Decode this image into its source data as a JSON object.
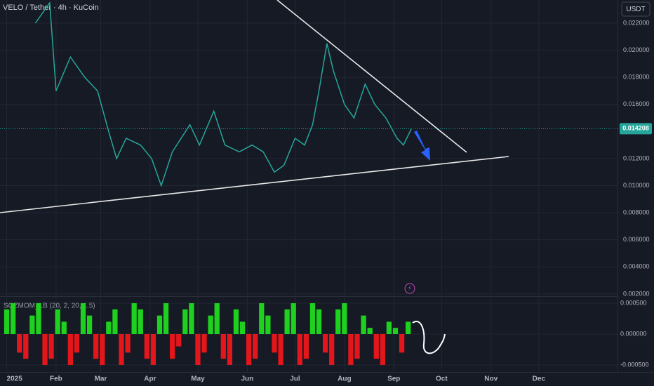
{
  "chart_data": [
    {
      "type": "line",
      "title": "VELO / Tether · 4h · KuCoin",
      "currency": "USDT",
      "color": "#26a69a",
      "last_value": 0.014208,
      "x": [
        18,
        27,
        31,
        40,
        49,
        57,
        64,
        69,
        75,
        84,
        91,
        97,
        104,
        115,
        121,
        130,
        137,
        146,
        154,
        161,
        168,
        174,
        181,
        187,
        192,
        196,
        201,
        205,
        212,
        218,
        225,
        231,
        238,
        245,
        249,
        254
      ],
      "values": [
        0.022,
        0.0235,
        0.017,
        0.0195,
        0.018,
        0.017,
        0.014,
        0.012,
        0.0135,
        0.013,
        0.012,
        0.01,
        0.0125,
        0.0145,
        0.013,
        0.0155,
        0.013,
        0.0125,
        0.013,
        0.0125,
        0.011,
        0.0115,
        0.0135,
        0.013,
        0.0145,
        0.017,
        0.0205,
        0.0185,
        0.016,
        0.015,
        0.0175,
        0.016,
        0.015,
        0.0135,
        0.013,
        0.0142
      ],
      "xlim": [
        -4.2,
        383.4
      ],
      "xticks": [
        {
          "value": 0,
          "label": "2025"
        },
        {
          "value": 31,
          "label": "Feb"
        },
        {
          "value": 59,
          "label": "Mar"
        },
        {
          "value": 90,
          "label": "Apr"
        },
        {
          "value": 120,
          "label": "May"
        },
        {
          "value": 151,
          "label": "Jun"
        },
        {
          "value": 181,
          "label": "Jul"
        },
        {
          "value": 212,
          "label": "Aug"
        },
        {
          "value": 243,
          "label": "Sep"
        },
        {
          "value": 273,
          "label": "Oct"
        },
        {
          "value": 304,
          "label": "Nov"
        },
        {
          "value": 334,
          "label": "Dec"
        }
      ],
      "ylim": [
        0.00184,
        0.02371
      ],
      "yticks": [
        {
          "value": 0.002,
          "label": "0.002000"
        },
        {
          "value": 0.004,
          "label": "0.004000"
        },
        {
          "value": 0.006,
          "label": "0.006000"
        },
        {
          "value": 0.008,
          "label": "0.008000"
        },
        {
          "value": 0.01,
          "label": "0.010000"
        },
        {
          "value": 0.012,
          "label": "0.012000"
        },
        {
          "value": 0.016,
          "label": "0.016000"
        },
        {
          "value": 0.018,
          "label": "0.018000"
        },
        {
          "value": 0.02,
          "label": "0.020000"
        },
        {
          "value": 0.022,
          "label": "0.022000"
        }
      ],
      "grid": true
    },
    {
      "type": "bar",
      "title": "SQZMOM_LB (20, 2, 20, 1.5)",
      "positive_color": "#1fd11f",
      "negative_color": "#e3161b",
      "x": [
        0,
        4,
        8,
        12,
        16,
        20,
        24,
        28,
        32,
        36,
        40,
        44,
        48,
        52,
        56,
        60,
        64,
        68,
        72,
        76,
        80,
        84,
        88,
        92,
        96,
        100,
        104,
        108,
        112,
        116,
        120,
        124,
        128,
        132,
        136,
        140,
        144,
        148,
        152,
        156,
        160,
        164,
        168,
        172,
        176,
        180,
        184,
        188,
        192,
        196,
        200,
        204,
        208,
        212,
        216,
        220,
        224,
        228,
        232,
        236,
        240,
        244,
        248,
        252
      ],
      "values": [
        0.0004,
        0.0005,
        -0.0003,
        -0.0004,
        0.0003,
        0.0005,
        -0.0005,
        -0.0004,
        0.0004,
        0.0002,
        -0.0005,
        -0.0003,
        0.0005,
        0.0003,
        -0.0004,
        -0.0005,
        0.0002,
        0.0004,
        -0.0005,
        -0.0003,
        0.0005,
        0.0004,
        -0.0004,
        -0.0005,
        0.0003,
        0.0005,
        -0.0004,
        -0.0002,
        0.0004,
        0.0005,
        -0.0005,
        -0.0003,
        0.0003,
        0.0005,
        -0.0004,
        -0.0005,
        0.0004,
        0.0002,
        -0.0005,
        -0.0004,
        0.0005,
        0.0003,
        -0.0003,
        -0.0005,
        0.0004,
        0.0005,
        -0.0005,
        -0.0004,
        0.0005,
        0.0004,
        -0.0003,
        -0.0005,
        0.0004,
        0.0005,
        -0.0005,
        -0.0004,
        0.0003,
        0.0001,
        -0.0004,
        -0.0005,
        0.0002,
        0.0001,
        -0.0003,
        0.0002
      ],
      "xlim": [
        -4.2,
        383.4
      ],
      "ylim": [
        -0.000614,
        0.000614
      ],
      "yticks": [
        {
          "value": -0.0005,
          "label": "-0.000500"
        },
        {
          "value": 0,
          "label": "0.000000"
        },
        {
          "value": 0.0005,
          "label": "0.000500"
        }
      ]
    }
  ]
}
